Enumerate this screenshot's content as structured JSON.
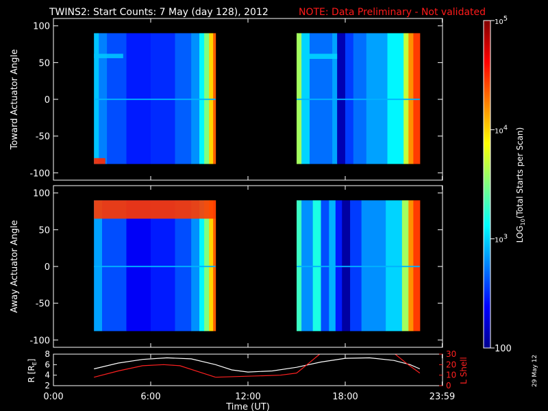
{
  "header": {
    "title": "TWINS2: Start Counts:  7 May (day 128), 2012",
    "note": "NOTE: Data Preliminary - Not validated"
  },
  "footer": {
    "date_stamp": "29 May 12"
  },
  "colors": {
    "background": "#000000",
    "axes": "#ffffff",
    "note": "#ff1a1a",
    "lshell": "#ff2020",
    "radius": "#ffffff"
  },
  "chart_data": [
    {
      "type": "heatmap",
      "ylabel": "Toward Actuator Angle",
      "ylim": [
        -110,
        110
      ],
      "yticks": [
        -100,
        -50,
        0,
        50,
        100
      ],
      "xlim": [
        0,
        24
      ],
      "data_y_range": [
        -88,
        90
      ],
      "intervals": [
        {
          "x_range": [
            2.5,
            10.0
          ],
          "columns": [
            {
              "x": [
                2.5,
                2.8
              ],
              "log10": 2.95
            },
            {
              "x": [
                2.8,
                3.3
              ],
              "log10": 2.75
            },
            {
              "x": [
                3.3,
                4.5
              ],
              "log10": 2.6
            },
            {
              "x": [
                4.5,
                6.0
              ],
              "log10": 2.45
            },
            {
              "x": [
                6.0,
                7.5
              ],
              "log10": 2.5
            },
            {
              "x": [
                7.5,
                8.5
              ],
              "log10": 2.65
            },
            {
              "x": [
                8.5,
                9.0
              ],
              "log10": 2.8
            },
            {
              "x": [
                9.0,
                9.3
              ],
              "log10": 3.1
            },
            {
              "x": [
                9.3,
                9.6
              ],
              "log10": 3.5
            },
            {
              "x": [
                9.6,
                9.85
              ],
              "log10": 4.0
            },
            {
              "x": [
                9.85,
                10.0
              ],
              "log10": 4.35
            }
          ],
          "features": [
            {
              "x": [
                2.5,
                4.3
              ],
              "y": [
                56,
                62
              ],
              "log10": 2.95
            },
            {
              "x": [
                2.5,
                10.0
              ],
              "y": [
                -1,
                1
              ],
              "log10": 2.9
            },
            {
              "x": [
                2.5,
                3.2
              ],
              "y": [
                -88,
                -80
              ],
              "log10": 4.5
            }
          ]
        },
        {
          "x_range": [
            15.0,
            22.6
          ],
          "columns": [
            {
              "x": [
                15.0,
                15.3
              ],
              "log10": 3.6
            },
            {
              "x": [
                15.3,
                15.8
              ],
              "log10": 3.0
            },
            {
              "x": [
                15.8,
                17.2
              ],
              "log10": 2.7
            },
            {
              "x": [
                17.2,
                17.5
              ],
              "log10": 2.85
            },
            {
              "x": [
                17.5,
                18.0
              ],
              "log10": 2.15
            },
            {
              "x": [
                18.0,
                18.5
              ],
              "log10": 2.55
            },
            {
              "x": [
                18.5,
                19.3
              ],
              "log10": 2.7
            },
            {
              "x": [
                19.3,
                20.6
              ],
              "log10": 2.85
            },
            {
              "x": [
                20.6,
                21.6
              ],
              "log10": 3.1
            },
            {
              "x": [
                21.6,
                21.9
              ],
              "log10": 3.7
            },
            {
              "x": [
                21.9,
                22.2
              ],
              "log10": 4.2
            },
            {
              "x": [
                22.2,
                22.6
              ],
              "log10": 4.45
            }
          ],
          "features": [
            {
              "x": [
                15.3,
                17.5
              ],
              "y": [
                55,
                62
              ],
              "log10": 3.0
            },
            {
              "x": [
                15.0,
                22.6
              ],
              "y": [
                -1,
                1
              ],
              "log10": 2.9
            }
          ]
        }
      ]
    },
    {
      "type": "heatmap",
      "ylabel": "Away Actuator Angle",
      "ylim": [
        -110,
        110
      ],
      "yticks": [
        -100,
        -50,
        0,
        50,
        100
      ],
      "xlim": [
        0,
        24
      ],
      "data_y_range": [
        -88,
        90
      ],
      "intervals": [
        {
          "x_range": [
            2.5,
            10.0
          ],
          "columns": [
            {
              "x": [
                2.5,
                3.0
              ],
              "log10": 2.85
            },
            {
              "x": [
                3.0,
                4.5
              ],
              "log10": 2.6
            },
            {
              "x": [
                4.5,
                6.0
              ],
              "log10": 2.35
            },
            {
              "x": [
                6.0,
                7.5
              ],
              "log10": 2.45
            },
            {
              "x": [
                7.5,
                8.5
              ],
              "log10": 2.6
            },
            {
              "x": [
                8.5,
                9.0
              ],
              "log10": 2.8
            },
            {
              "x": [
                9.0,
                9.3
              ],
              "log10": 3.1
            },
            {
              "x": [
                9.3,
                9.6
              ],
              "log10": 3.5
            },
            {
              "x": [
                9.6,
                9.85
              ],
              "log10": 4.0
            },
            {
              "x": [
                9.85,
                10.0
              ],
              "log10": 4.35
            }
          ],
          "features": [
            {
              "x": [
                2.5,
                10.0
              ],
              "y": [
                65,
                90
              ],
              "log10": 4.45
            },
            {
              "x": [
                2.5,
                10.0
              ],
              "y": [
                -1,
                1
              ],
              "log10": 2.9
            }
          ]
        },
        {
          "x_range": [
            15.0,
            22.6
          ],
          "columns": [
            {
              "x": [
                15.0,
                15.3
              ],
              "log10": 3.3
            },
            {
              "x": [
                15.3,
                16.0
              ],
              "log10": 2.8
            },
            {
              "x": [
                16.0,
                16.5
              ],
              "log10": 3.2
            },
            {
              "x": [
                16.5,
                17.0
              ],
              "log10": 2.6
            },
            {
              "x": [
                17.0,
                17.4
              ],
              "log10": 2.9
            },
            {
              "x": [
                17.4,
                17.8
              ],
              "log10": 2.45
            },
            {
              "x": [
                17.8,
                18.3
              ],
              "log10": 2.1
            },
            {
              "x": [
                18.3,
                19.0
              ],
              "log10": 2.55
            },
            {
              "x": [
                19.0,
                20.5
              ],
              "log10": 2.8
            },
            {
              "x": [
                20.5,
                21.5
              ],
              "log10": 3.0
            },
            {
              "x": [
                21.5,
                21.9
              ],
              "log10": 3.6
            },
            {
              "x": [
                21.9,
                22.2
              ],
              "log10": 4.2
            },
            {
              "x": [
                22.2,
                22.6
              ],
              "log10": 4.45
            }
          ],
          "features": [
            {
              "x": [
                15.0,
                22.6
              ],
              "y": [
                -1,
                1
              ],
              "log10": 2.9
            }
          ]
        }
      ]
    },
    {
      "type": "line",
      "xlabel": "Time (UT)",
      "xlim": [
        0,
        24
      ],
      "xticks": [
        {
          "value": 0.0,
          "label": "0:00"
        },
        {
          "value": 6.0,
          "label": "6:00"
        },
        {
          "value": 12.0,
          "label": "12:00"
        },
        {
          "value": 18.0,
          "label": "18:00"
        },
        {
          "value": 23.98,
          "label": "23:59"
        }
      ],
      "ylabel_left": "R [R",
      "ylabel_left_sub": "E",
      "ylabel_left_end": "]",
      "ylim_left": [
        2,
        8
      ],
      "yticks_left": [
        2,
        4,
        6,
        8
      ],
      "ylabel_right": "L Shell",
      "ylim_right": [
        0,
        30
      ],
      "yticks_right": [
        0,
        10,
        20,
        30
      ],
      "series": [
        {
          "axis": "left",
          "color": "#ffffff",
          "x": [
            2.5,
            4.0,
            5.5,
            7.0,
            8.5,
            10.0,
            11.0,
            12.0,
            13.5,
            15.0,
            16.5,
            18.0,
            19.5,
            21.0,
            22.0,
            22.6
          ],
          "y": [
            5.2,
            6.3,
            7.0,
            7.3,
            7.1,
            6.0,
            5.0,
            4.6,
            4.8,
            5.5,
            6.5,
            7.2,
            7.3,
            6.8,
            6.0,
            5.2
          ]
        },
        {
          "axis": "right",
          "color": "#ff2020",
          "segments": [
            {
              "x": [
                2.5,
                4.0,
                5.5,
                6.8,
                7.8,
                9.0,
                10.0
              ],
              "y": [
                8,
                14,
                19,
                20,
                19,
                13,
                8
              ]
            },
            {
              "x": [
                10.0,
                12.0,
                14.0,
                15.0
              ],
              "y": [
                8,
                9,
                10,
                12
              ]
            },
            {
              "x": [
                15.0,
                15.8,
                16.5
              ],
              "y": [
                12,
                22,
                31
              ]
            },
            {
              "x": [
                21.0,
                21.8,
                22.6
              ],
              "y": [
                31,
                21,
                12
              ]
            }
          ]
        }
      ]
    },
    {
      "type": "colorbar",
      "ylabel": "LOG",
      "ylabel_sub": "10",
      "ylabel_end": "(Total Starts per Scan)",
      "range_log10": [
        2,
        5
      ],
      "ticks": [
        {
          "log10": 5,
          "label": "10",
          "exp": "5"
        },
        {
          "log10": 4,
          "label": "10",
          "exp": "4"
        },
        {
          "log10": 3,
          "label": "10",
          "exp": "3"
        },
        {
          "log10": 2,
          "label": "100",
          "exp": ""
        }
      ]
    }
  ]
}
